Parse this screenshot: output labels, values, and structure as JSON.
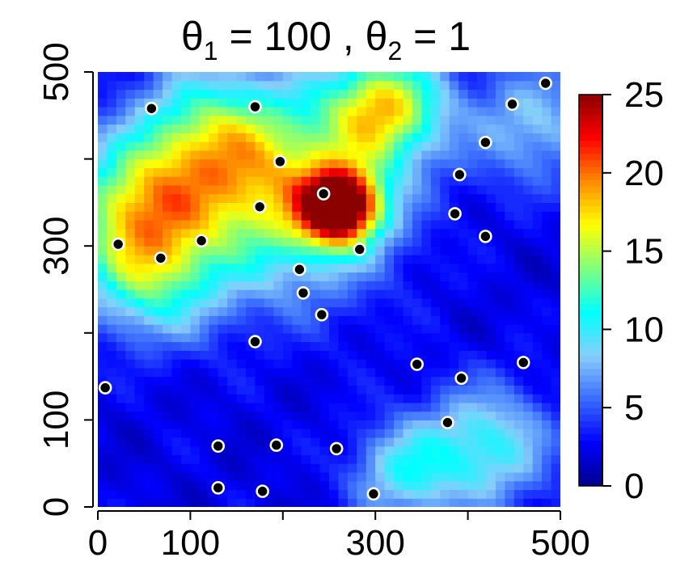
{
  "chart_data": {
    "type": "heatmap",
    "title": {
      "theta": "θ",
      "sub1": "1",
      "eq1": " = 100 , ",
      "sub2": "2",
      "eq2": " = 1"
    },
    "xlabel": "",
    "ylabel": "",
    "xlim": [
      0,
      500
    ],
    "ylim": [
      0,
      500
    ],
    "x_ticks": [
      0,
      100,
      200,
      300,
      400,
      500
    ],
    "x_tick_labels": [
      "0",
      "100",
      "",
      "300",
      "",
      "500"
    ],
    "y_ticks": [
      0,
      100,
      200,
      300,
      400,
      500
    ],
    "y_tick_labels": [
      "0",
      "100",
      "",
      "300",
      "",
      "500"
    ],
    "colorbar": {
      "range": [
        0,
        25
      ],
      "ticks": [
        0,
        5,
        10,
        15,
        20,
        25
      ],
      "tick_labels": [
        "0",
        "5",
        "10",
        "15",
        "20",
        "25"
      ],
      "palette": [
        "#00008b",
        "#0000ff",
        "#3a6bff",
        "#87cefa",
        "#00ffff",
        "#7fff7f",
        "#ffff00",
        "#ff8c00",
        "#ff0000",
        "#8b0000"
      ]
    },
    "field_hotspots": [
      {
        "x": 262,
        "y": 345,
        "value": 22,
        "spread": 30
      },
      {
        "x": 310,
        "y": 460,
        "value": 14,
        "spread": 45
      },
      {
        "x": 200,
        "y": 360,
        "value": 12,
        "spread": 80
      },
      {
        "x": 40,
        "y": 340,
        "value": 12,
        "spread": 55
      },
      {
        "x": 120,
        "y": 420,
        "value": 9,
        "spread": 60
      },
      {
        "x": 420,
        "y": 70,
        "value": 8,
        "spread": 50
      },
      {
        "x": 330,
        "y": 40,
        "value": 7,
        "spread": 40
      },
      {
        "x": 60,
        "y": 260,
        "value": 8,
        "spread": 50
      },
      {
        "x": 470,
        "y": 440,
        "value": 6,
        "spread": 50
      }
    ],
    "points": [
      {
        "x": 8,
        "y": 137
      },
      {
        "x": 22,
        "y": 302
      },
      {
        "x": 68,
        "y": 286
      },
      {
        "x": 58,
        "y": 458
      },
      {
        "x": 112,
        "y": 306
      },
      {
        "x": 130,
        "y": 70
      },
      {
        "x": 130,
        "y": 22
      },
      {
        "x": 170,
        "y": 460
      },
      {
        "x": 170,
        "y": 190
      },
      {
        "x": 175,
        "y": 345
      },
      {
        "x": 178,
        "y": 18
      },
      {
        "x": 193,
        "y": 71
      },
      {
        "x": 197,
        "y": 397
      },
      {
        "x": 218,
        "y": 273
      },
      {
        "x": 222,
        "y": 246
      },
      {
        "x": 242,
        "y": 221
      },
      {
        "x": 244,
        "y": 360
      },
      {
        "x": 258,
        "y": 67
      },
      {
        "x": 283,
        "y": 296
      },
      {
        "x": 298,
        "y": 15
      },
      {
        "x": 345,
        "y": 164
      },
      {
        "x": 378,
        "y": 97
      },
      {
        "x": 386,
        "y": 337
      },
      {
        "x": 391,
        "y": 382
      },
      {
        "x": 393,
        "y": 148
      },
      {
        "x": 419,
        "y": 311
      },
      {
        "x": 419,
        "y": 419
      },
      {
        "x": 448,
        "y": 463
      },
      {
        "x": 460,
        "y": 166
      },
      {
        "x": 484,
        "y": 487
      }
    ]
  }
}
